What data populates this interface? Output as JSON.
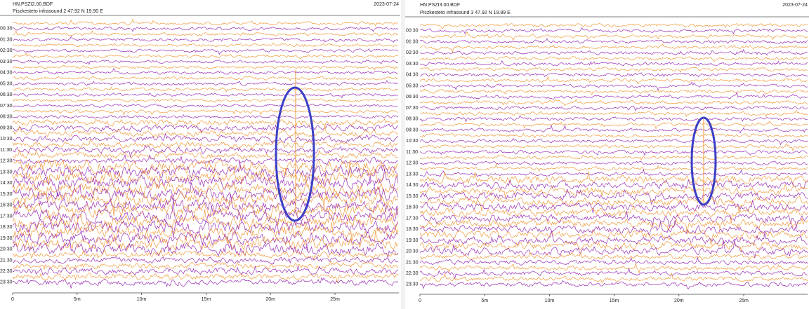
{
  "panels": [
    {
      "station": "HN.PSZI2.00.BDF",
      "date": "2023-07-24",
      "subtitle": "Piszkesteto infrasound 2  47.92 N 19.90 E",
      "row_labels": [
        "00:30",
        "01:30",
        "02:30",
        "03:30",
        "04:30",
        "05:30",
        "06:30",
        "07:30",
        "08:30",
        "09:30",
        "10:30",
        "11:30",
        "12:30",
        "13:30",
        "14:30",
        "15:30",
        "16:30",
        "17:30",
        "18:30",
        "19:30",
        "20:30",
        "21:30",
        "22:30",
        "23:30"
      ],
      "x_ticks": [
        "0",
        "5m",
        "10m",
        "15m",
        "20m",
        "25m"
      ]
    },
    {
      "station": "HN.PSZI3.00.BDF",
      "date": "2023-07-24",
      "subtitle": "Piszkesteto infrasound 3  47.92 N 19.89 E",
      "row_labels": [
        "00:30",
        "01:30",
        "02:30",
        "03:30",
        "04:30",
        "05:30",
        "06:30",
        "07:30",
        "08:30",
        "09:30",
        "10:30",
        "11:30",
        "12:30",
        "13:30",
        "14:30",
        "15:30",
        "16:30",
        "17:30",
        "18:30",
        "19:30",
        "20:30",
        "21:30",
        "22:30",
        "23:30"
      ],
      "x_ticks": [
        "0",
        "5m",
        "10m",
        "15m",
        "20m",
        "25m"
      ]
    }
  ]
}
